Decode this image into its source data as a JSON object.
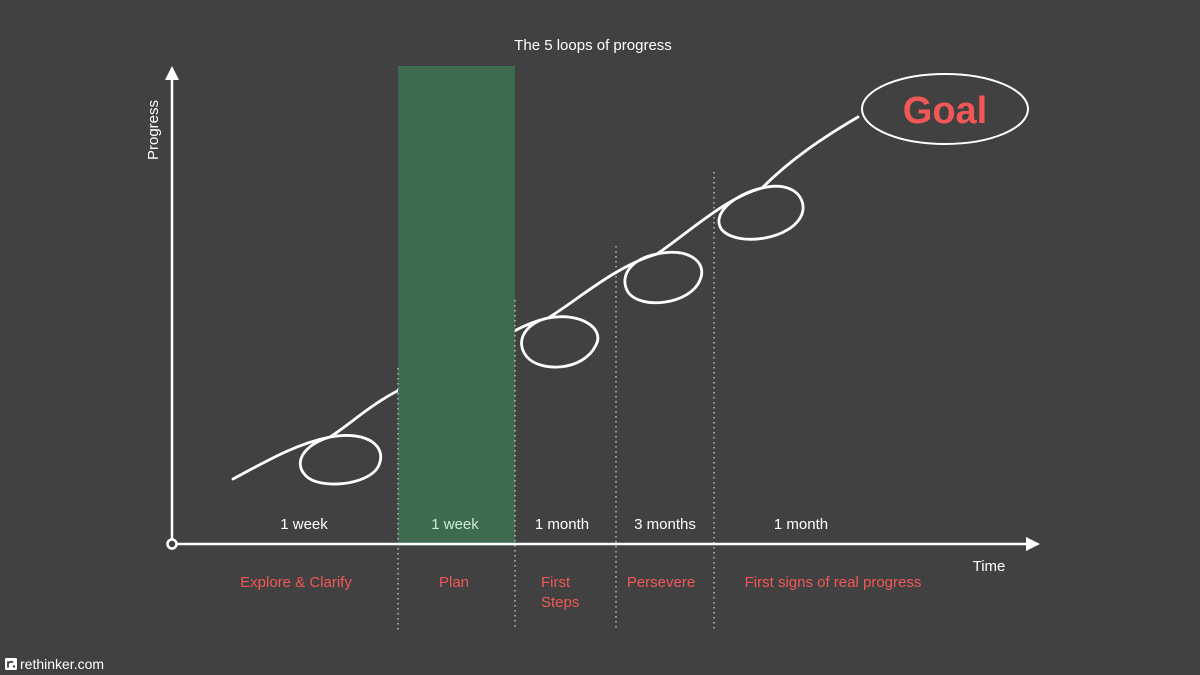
{
  "title": "The 5 loops of progress",
  "axes": {
    "y_label": "Progress",
    "x_label": "Time"
  },
  "goal": {
    "label": "Goal"
  },
  "phases": [
    {
      "duration": "1 week",
      "name": [
        "Explore & Clarify"
      ]
    },
    {
      "duration": "1 week",
      "name": [
        "Plan"
      ]
    },
    {
      "duration": "1 month",
      "name": [
        "First",
        "Steps"
      ]
    },
    {
      "duration": "3 months",
      "name": [
        "Persevere"
      ]
    },
    {
      "duration": "1 month",
      "name": [
        "First signs of real progress"
      ]
    }
  ],
  "highlight_phase": "Plan",
  "colors": {
    "background": "#414141",
    "line": "#ffffff",
    "highlight_fill": "#3d6b4f",
    "highlight_line": "#cfe9d9",
    "accent": "#f25757"
  },
  "watermark": {
    "text": "rethinker.com",
    "icon": "rethinker-logo-icon"
  }
}
